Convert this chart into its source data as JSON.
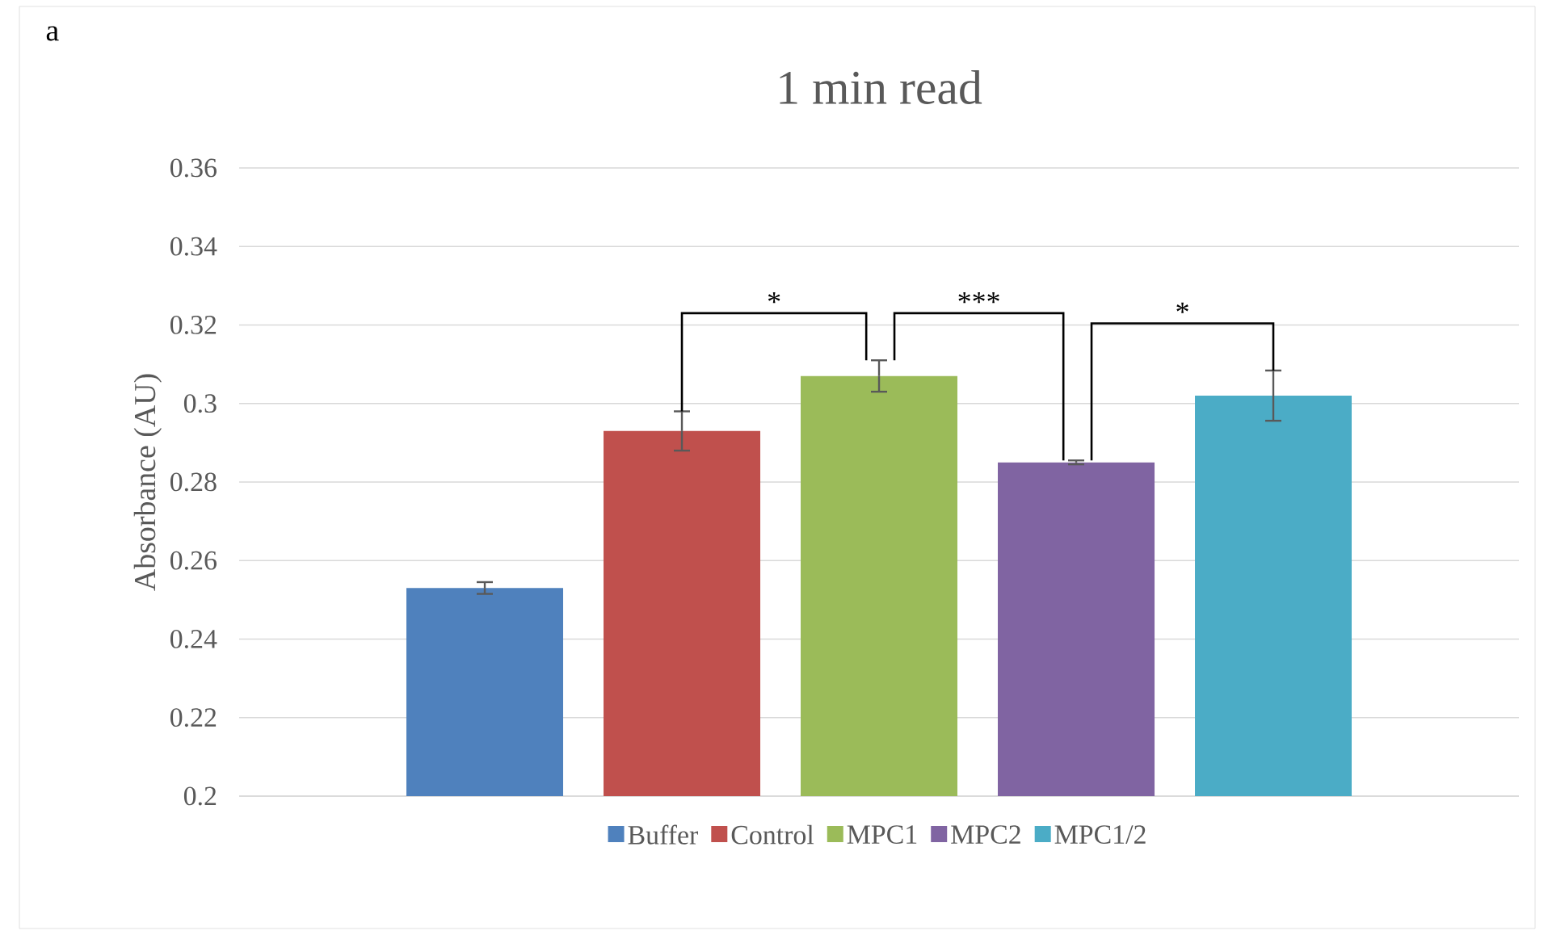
{
  "chart_data": {
    "type": "bar",
    "title": "1 min read",
    "ylabel": "Absorbance (AU)",
    "categories": [
      null
    ],
    "series": [
      {
        "name": "Buffer",
        "color": "#4f81bd",
        "values": [
          0.253
        ],
        "errors": [
          0.0015
        ]
      },
      {
        "name": "Control",
        "color": "#c0504d",
        "values": [
          0.293
        ],
        "errors": [
          0.005
        ]
      },
      {
        "name": "MPC1",
        "color": "#9bbb59",
        "values": [
          0.307
        ],
        "errors": [
          0.004
        ]
      },
      {
        "name": "MPC2",
        "color": "#8064a2",
        "values": [
          0.285
        ],
        "errors": [
          0.0005
        ]
      },
      {
        "name": "MPC1/2",
        "color": "#4bacc6",
        "values": [
          0.302
        ],
        "errors": [
          0.0064
        ]
      }
    ],
    "ylim": [
      0.2,
      0.36
    ],
    "yticks": [
      0.2,
      0.22,
      0.24,
      0.26,
      0.28,
      0.3,
      0.32,
      0.34,
      0.36
    ],
    "grid": "y",
    "legend": "bottom",
    "annotations": [
      "a",
      "*",
      "***",
      "*"
    ]
  }
}
